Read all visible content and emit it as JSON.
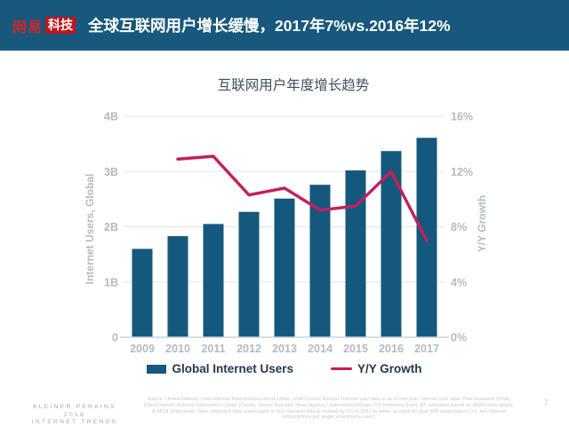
{
  "header": {
    "logo_primary": "网易",
    "logo_secondary": "科技",
    "title": "全球互联网用户增长缓慢，2017年7%vs.2016年12%",
    "background_color": "#17587C",
    "logo_red": "#C0161D"
  },
  "chart_data": {
    "type": "bar",
    "title": "互联网用户年度增长趋势",
    "categories": [
      "2009",
      "2010",
      "2011",
      "2012",
      "2013",
      "2014",
      "2015",
      "2016",
      "2017"
    ],
    "series": [
      {
        "name": "Global Internet Users",
        "type": "bar",
        "axis": "left",
        "unit": "B",
        "values": [
          1.6,
          1.83,
          2.05,
          2.27,
          2.51,
          2.76,
          3.02,
          3.37,
          3.61
        ]
      },
      {
        "name": "Y/Y Growth",
        "type": "line",
        "axis": "right",
        "unit": "%",
        "values": [
          null,
          12.9,
          13.1,
          10.3,
          10.8,
          9.2,
          9.5,
          12.0,
          7.0
        ]
      }
    ],
    "left_axis": {
      "label": "Internet Users, Global",
      "ticks": [
        "0",
        "1B",
        "2B",
        "3B",
        "4B"
      ],
      "min": 0,
      "max": 4
    },
    "right_axis": {
      "label": "Y/Y Growth",
      "ticks": [
        "0%",
        "4%",
        "8%",
        "12%",
        "16%"
      ],
      "min": 0,
      "max": 16
    },
    "grid": true,
    "legend_position": "bottom",
    "colors": {
      "bar": "#15587E",
      "line": "#C41F5B",
      "grid": "#E3E5E7",
      "axis": "#CFD2D5",
      "tick_text": "#B5BABF",
      "title_text": "#40505E",
      "legend_text": "#24394C"
    }
  },
  "footer": {
    "brand_lines": [
      "KLEINER PERKINS",
      "2018",
      "INTERNET TRENDS"
    ],
    "source": "Source: United Nations / International Telecommunications Union, USA Census Bureau. Internet user data is as of mid-year. Internet user data: Pew Research (USA), China Internet Network Information Center (China), Islamic Republic News Agency / InternetWorldStats / KP estimates (Iran), KP estimates based on IAMAI data (India), & APJII (Indonesia).  Note: Historical data (particularly in Sub-Saharan Africa) revised by ITU in 2017 to better account for dual SIM subscriptions (i.e. two Internet subscriptions per single smartphone user).",
    "page_number": "7"
  }
}
